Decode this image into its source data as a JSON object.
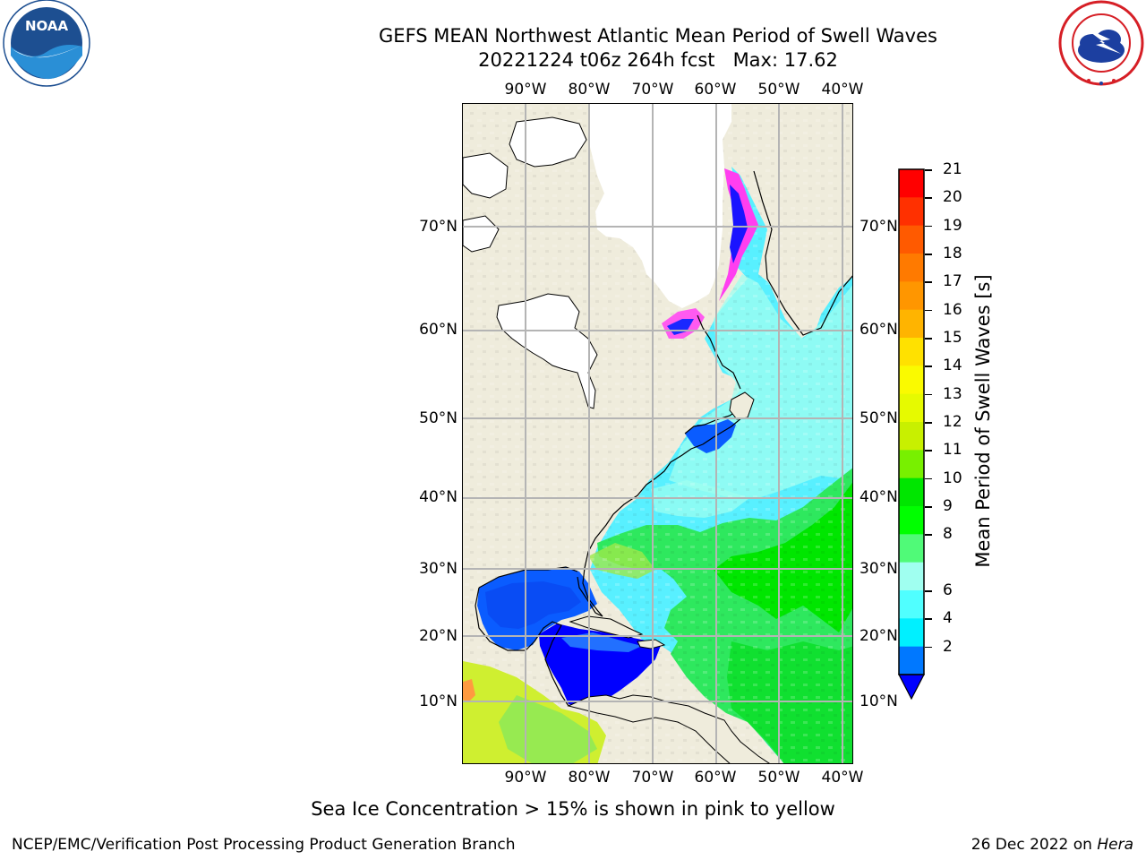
{
  "title": {
    "line1": "GEFS MEAN Northwest Atlantic Mean Period of Swell Waves",
    "line2": "20221224 t06z 264h fcst   Max: 17.62"
  },
  "logos": {
    "left": {
      "icon": "noaa-logo",
      "text": "NOAA",
      "ring_text": "NATIONAL OCEANIC AND ATMOSPHERIC ADMINISTRATION · U.S. DEPARTMENT OF COMMERCE"
    },
    "right": {
      "icon": "nws-logo",
      "ring_text": "NATIONAL WEATHER SERVICE"
    }
  },
  "map": {
    "longitude_labels": [
      "90°W",
      "80°W",
      "70°W",
      "60°W",
      "50°W",
      "40°W"
    ],
    "latitude_labels": [
      "70°N",
      "60°N",
      "50°N",
      "40°N",
      "30°N",
      "20°N",
      "10°N"
    ],
    "land_color": "#efecdc",
    "ice_color": "#ffffff",
    "grid_color": "#b4b4b4"
  },
  "colorbar": {
    "title": "Mean Period of Swell Waves [s]",
    "ticks": [
      "21",
      "20",
      "19",
      "18",
      "17",
      "16",
      "15",
      "14",
      "13",
      "12",
      "11",
      "10",
      "9",
      "8",
      "6",
      "4",
      "2"
    ],
    "colors_top_to_bottom": [
      "#ff0000",
      "#ff3000",
      "#ff5a00",
      "#ff7a00",
      "#ff9600",
      "#ffb400",
      "#ffe100",
      "#fafa00",
      "#e6fa00",
      "#c8f000",
      "#78f000",
      "#00e600",
      "#00ff00",
      "#50fa78",
      "#a0fff0",
      "#50ffff",
      "#00f0ff",
      "#0078ff"
    ],
    "under_color": "#0000ff"
  },
  "note": "Sea Ice Concentration > 15% is shown in pink to yellow",
  "footer": {
    "left": "NCEP/EMC/Verification Post Processing Product Generation Branch",
    "right_date": "26 Dec 2022 on ",
    "right_host": "Hera"
  }
}
